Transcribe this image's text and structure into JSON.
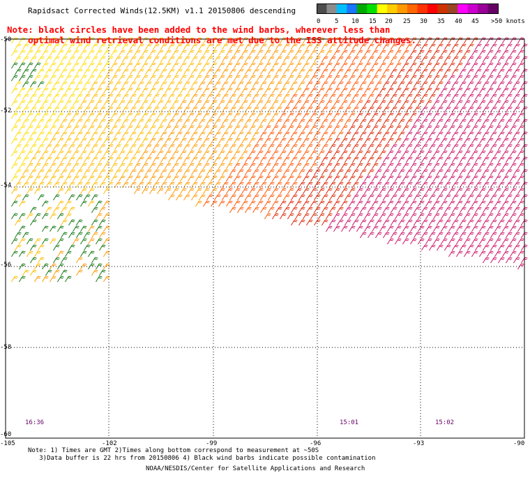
{
  "title": "Rapidsact Corrected Winds(12.5KM) v1.1 20150806 descending",
  "note": {
    "line1": "Note: black circles have been added to the wind barbs, wherever less than",
    "line2": "    optimal wind retrieval conditions are met due to the ISS attitude changes."
  },
  "colorbar": {
    "labels": [
      "0",
      "5",
      "10",
      "15",
      "20",
      "25",
      "30",
      "35",
      "40",
      "45",
      ">50 knots"
    ],
    "colors": [
      "#4d4d4d",
      "#8c8c8c",
      "#00bfff",
      "#1a75ff",
      "#00aa00",
      "#00e000",
      "#ffff00",
      "#ffcc00",
      "#ff9900",
      "#ff6600",
      "#ff3300",
      "#ff0000",
      "#cc3300",
      "#994422",
      "#ff00ff",
      "#cc00cc",
      "#990099",
      "#660066"
    ]
  },
  "axes": {
    "lat_labels": [
      "-50",
      "-52",
      "-54",
      "-56",
      "-58",
      "-60"
    ],
    "lon_labels": [
      "-105",
      "-102",
      "-99",
      "-96",
      "-93",
      "-90"
    ]
  },
  "times": [
    "16:36",
    "15:01",
    "15:02"
  ],
  "footnote": {
    "line1": "Note: 1) Times are GMT 2)Times along bottom correspond to measurement at ~50S",
    "line2": "   3)Data buffer is 22 hrs from 20150806 4) Black wind barbs indicate possible contamination"
  },
  "credit": "NOAA/NESDIS/Center for Satellite Applications and Research"
}
